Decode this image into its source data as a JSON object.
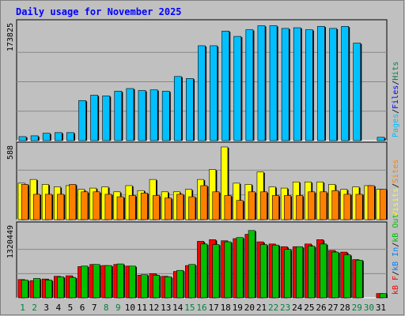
{
  "title": "Daily usage for November 2025",
  "colors": {
    "background": "#c0c0c0",
    "hits": "#008040",
    "files": "#0000ff",
    "pages": "#00c0ff",
    "visits": "#ffff00",
    "sites": "#ff8000",
    "kbin": "#0080ff",
    "kbout": "#00c000",
    "kbf": "#ff0000",
    "weekday_label": "#000000",
    "weekend_label": "#008040",
    "grid": "#888888"
  },
  "chart_data": [
    {
      "type": "bar",
      "panel": "hits-files-pages",
      "max_label": "173825",
      "ylim": [
        0,
        173825
      ],
      "legend": [
        "Pages",
        "/",
        "Files",
        "/",
        "Hits"
      ],
      "categories": [
        1,
        2,
        3,
        4,
        5,
        6,
        7,
        8,
        9,
        10,
        11,
        12,
        13,
        14,
        15,
        16,
        17,
        18,
        19,
        20,
        21,
        22,
        23,
        24,
        25,
        26,
        27,
        28,
        29,
        30,
        31
      ],
      "series": [
        {
          "name": "Pages",
          "values": [
            6000,
            7200,
            11000,
            12000,
            12000,
            60000,
            68000,
            67000,
            74000,
            78000,
            75000,
            76000,
            74000,
            96000,
            93000,
            142000,
            142000,
            164000,
            156000,
            166000,
            172000,
            172000,
            168000,
            169000,
            166000,
            171000,
            168000,
            171000,
            146000,
            0,
            5000
          ]
        }
      ]
    },
    {
      "type": "bar",
      "panel": "visits-sites",
      "max_label": "588",
      "ylim": [
        0,
        588
      ],
      "legend": [
        "Visits",
        "/",
        "Sites"
      ],
      "categories": [
        1,
        2,
        3,
        4,
        5,
        6,
        7,
        8,
        9,
        10,
        11,
        12,
        13,
        14,
        15,
        16,
        17,
        18,
        19,
        20,
        21,
        22,
        23,
        24,
        25,
        26,
        27,
        28,
        29,
        30,
        31
      ],
      "series": [
        {
          "name": "Visits",
          "values": [
            295,
            325,
            285,
            265,
            275,
            245,
            255,
            265,
            225,
            275,
            235,
            325,
            225,
            225,
            245,
            325,
            405,
            588,
            295,
            285,
            385,
            265,
            255,
            305,
            305,
            305,
            285,
            245,
            265,
            275,
            245
          ]
        },
        {
          "name": "Sites",
          "values": [
            285,
            205,
            205,
            205,
            285,
            225,
            225,
            205,
            185,
            195,
            215,
            195,
            175,
            205,
            185,
            275,
            225,
            195,
            155,
            225,
            225,
            195,
            195,
            195,
            225,
            225,
            235,
            205,
            205,
            275,
            245
          ]
        }
      ]
    },
    {
      "type": "bar",
      "panel": "kbf-kbin-kbout",
      "max_label": "1320449",
      "ylim": [
        0,
        1320449
      ],
      "legend": [
        "kB F",
        "/",
        "kB In",
        "/",
        "kB Out"
      ],
      "categories": [
        1,
        2,
        3,
        4,
        5,
        6,
        7,
        8,
        9,
        10,
        11,
        12,
        13,
        14,
        15,
        16,
        17,
        18,
        19,
        20,
        21,
        22,
        23,
        24,
        25,
        26,
        27,
        28,
        29,
        30,
        31
      ],
      "series": [
        {
          "name": "kB F",
          "values": [
            340000,
            320000,
            350000,
            400000,
            410000,
            580000,
            620000,
            600000,
            620000,
            590000,
            420000,
            450000,
            400000,
            490000,
            600000,
            1050000,
            1080000,
            1060000,
            1100000,
            1180000,
            1040000,
            1000000,
            950000,
            950000,
            1000000,
            1080000,
            880000,
            850000,
            710000,
            0,
            80000
          ]
        },
        {
          "name": "kB Out",
          "values": [
            330000,
            360000,
            330000,
            390000,
            380000,
            590000,
            620000,
            600000,
            630000,
            590000,
            430000,
            420000,
            390000,
            510000,
            620000,
            1000000,
            990000,
            1040000,
            1120000,
            1250000,
            990000,
            980000,
            900000,
            950000,
            960000,
            1000000,
            850000,
            800000,
            700000,
            0,
            80000
          ]
        }
      ]
    }
  ]
}
